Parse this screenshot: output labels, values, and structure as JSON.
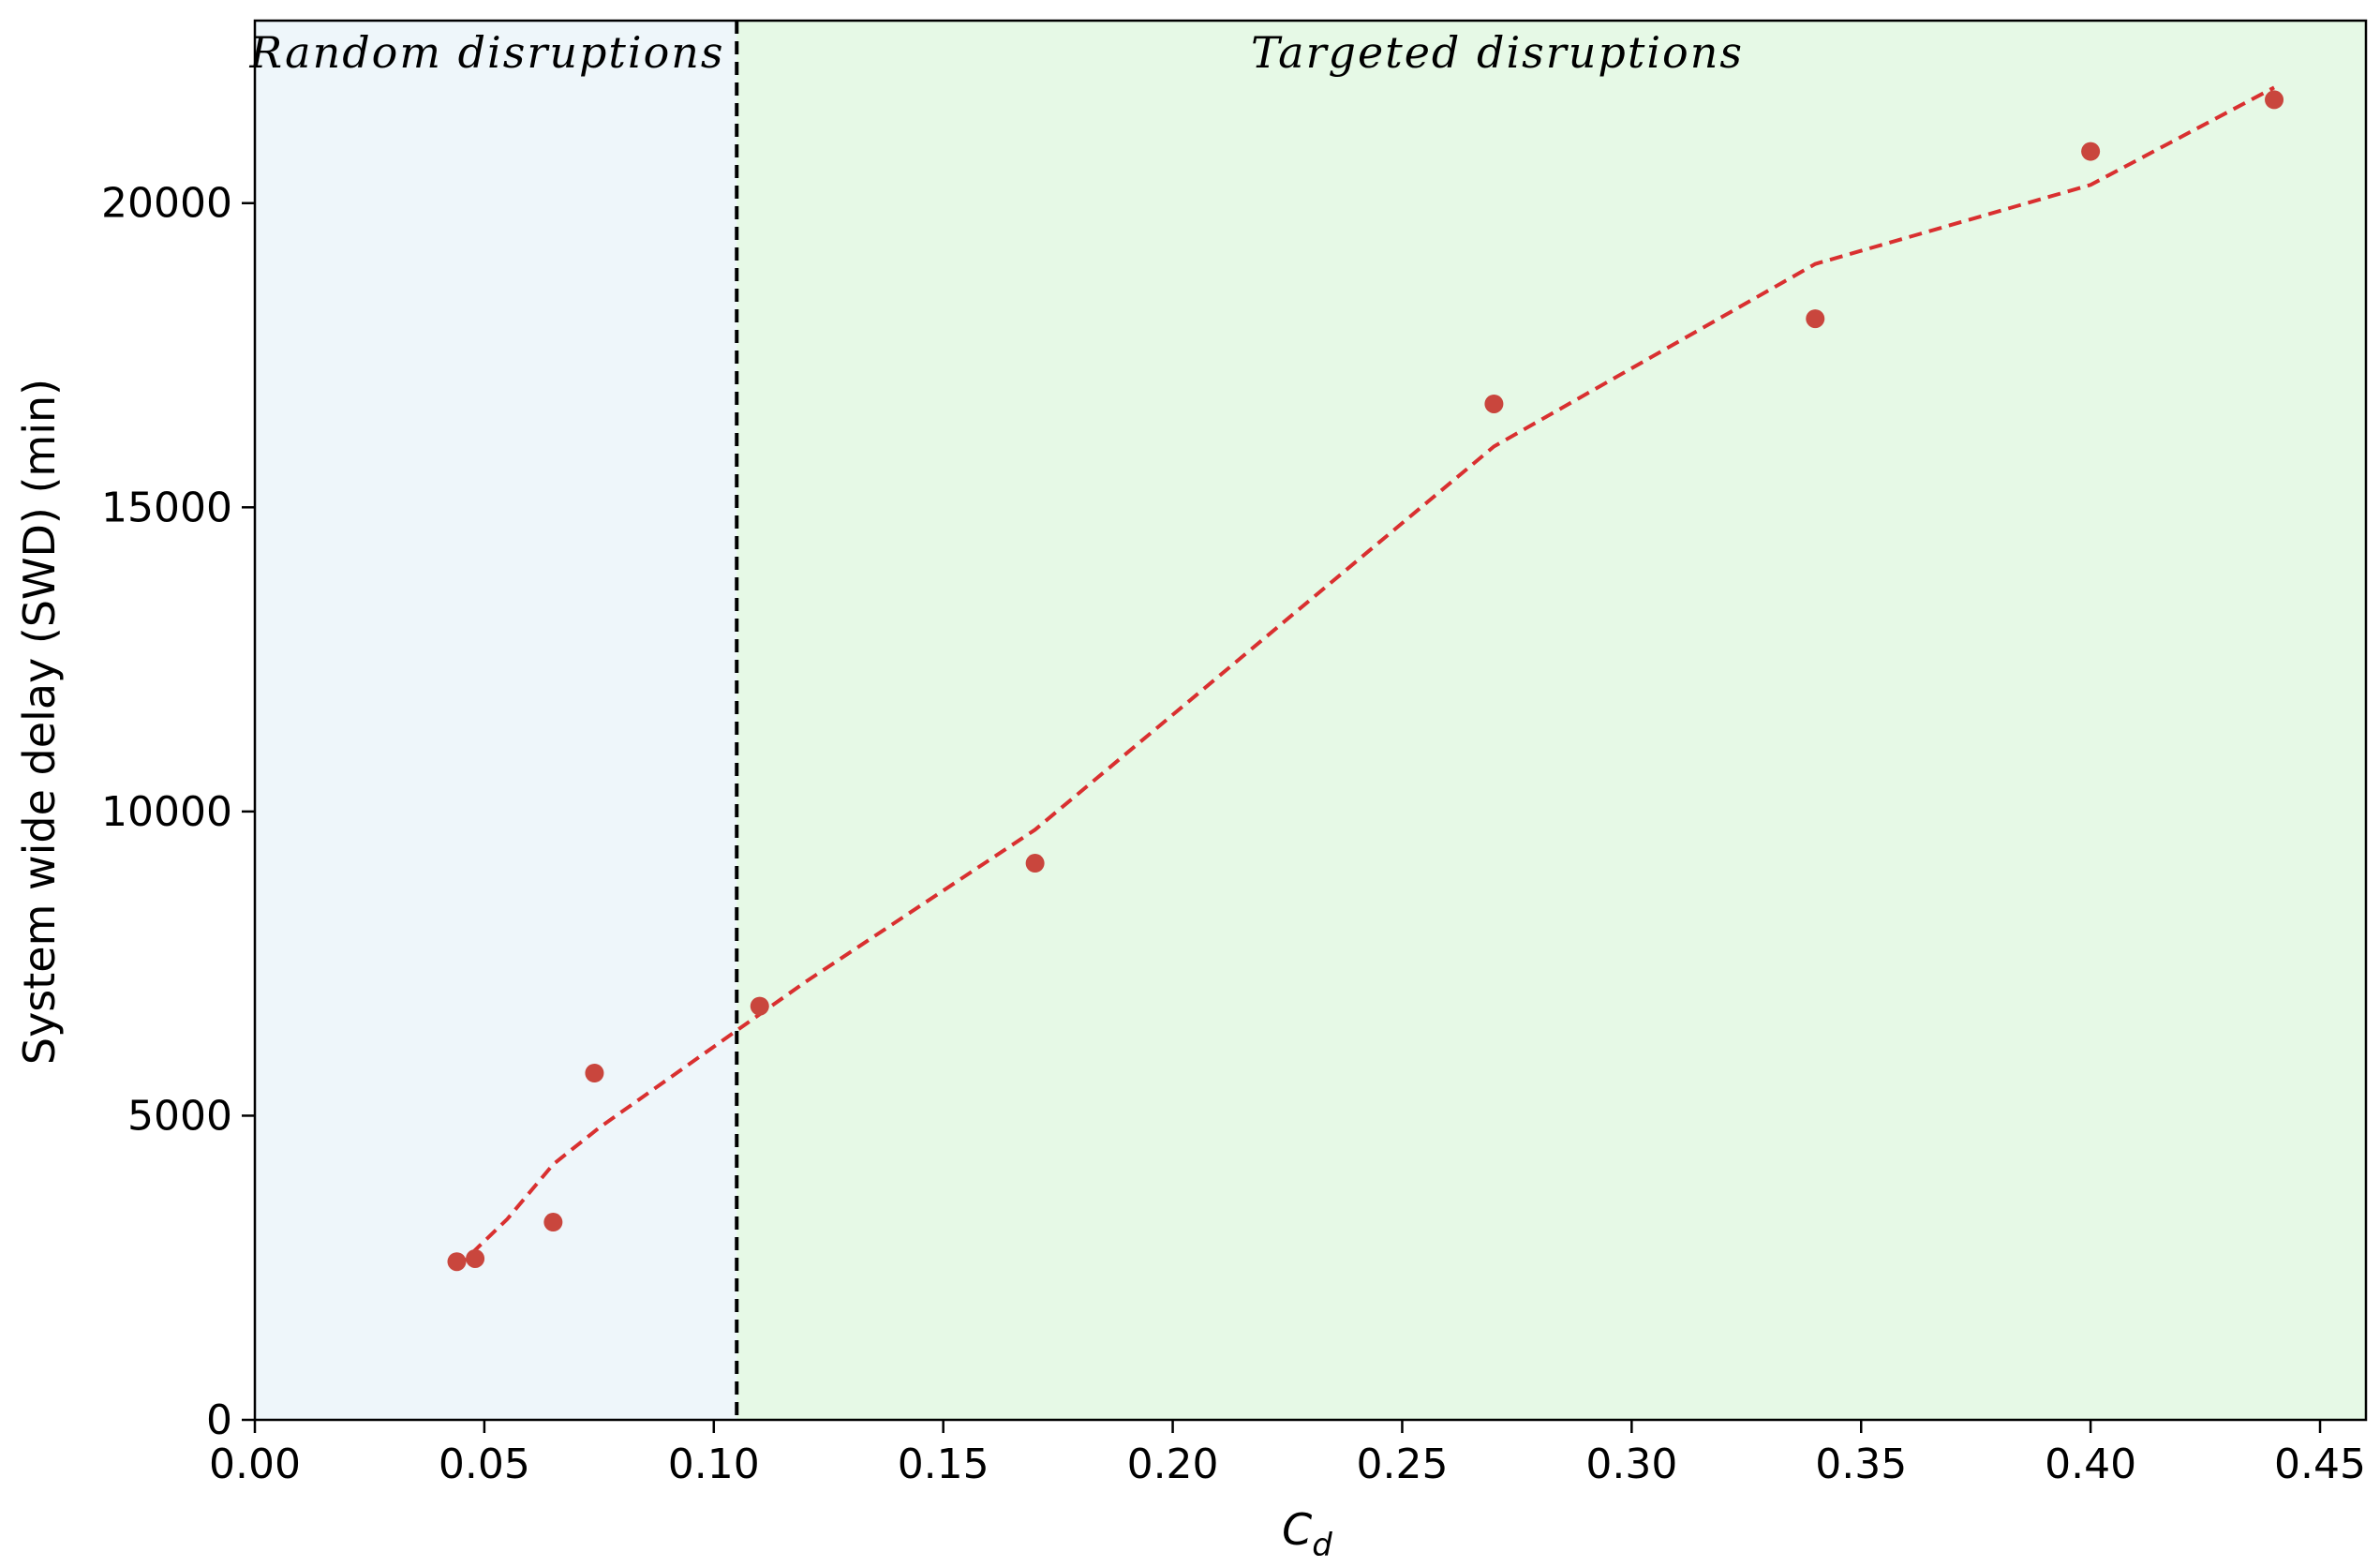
{
  "chart_data": {
    "type": "scatter",
    "xlabel_main": "C",
    "xlabel_sub": "d",
    "ylabel": "System wide delay (SWD) (min)",
    "xlim": [
      0.0,
      0.46
    ],
    "ylim": [
      0,
      23000
    ],
    "xticks": [
      "0.00",
      "0.05",
      "0.10",
      "0.15",
      "0.20",
      "0.25",
      "0.30",
      "0.35",
      "0.40",
      "0.45"
    ],
    "xtick_values": [
      0.0,
      0.05,
      0.1,
      0.15,
      0.2,
      0.25,
      0.3,
      0.35,
      0.4,
      0.45
    ],
    "yticks": [
      "0",
      "5000",
      "10000",
      "15000",
      "20000"
    ],
    "ytick_values": [
      0,
      5000,
      10000,
      15000,
      20000
    ],
    "threshold_x": 0.105,
    "regions": [
      {
        "label": "Random disruptions",
        "x_start": 0.0,
        "x_end": 0.105,
        "color": "#eef6fa"
      },
      {
        "label": "Targeted disruptions",
        "x_start": 0.105,
        "x_end": 0.46,
        "color": "#e6f9e6"
      }
    ],
    "scatter": {
      "color": "#c9463d",
      "x": [
        0.044,
        0.048,
        0.065,
        0.074,
        0.11,
        0.17,
        0.27,
        0.34,
        0.4,
        0.44
      ],
      "y": [
        2600,
        2650,
        3250,
        5700,
        6800,
        9150,
        16700,
        18100,
        20850,
        21700
      ]
    },
    "trend": {
      "color": "#d93030",
      "style": "dashed",
      "x": [
        0.044,
        0.055,
        0.065,
        0.075,
        0.09,
        0.105,
        0.12,
        0.17,
        0.27,
        0.34,
        0.4,
        0.44
      ],
      "y": [
        2500,
        3300,
        4200,
        4800,
        5600,
        6400,
        7200,
        9700,
        16000,
        19000,
        20300,
        21900
      ]
    },
    "grid": false,
    "legend": "none"
  }
}
